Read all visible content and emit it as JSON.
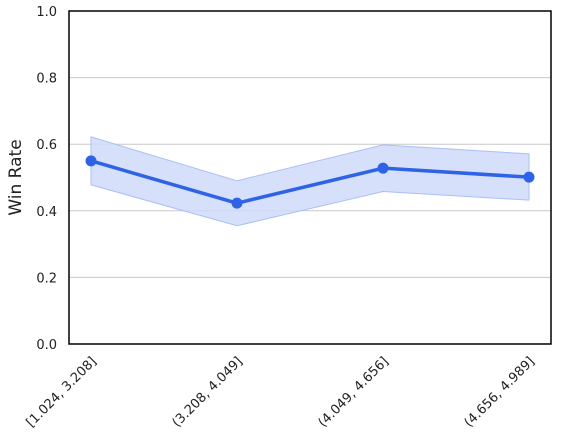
{
  "chart_data": {
    "type": "line",
    "title": "",
    "xlabel": "",
    "ylabel": "Win Rate",
    "categories": [
      "[1.024, 3.208]",
      "(3.208, 4.049]",
      "(4.049, 4.656]",
      "(4.656, 4.989]"
    ],
    "series": [
      {
        "values": [
          0.55,
          0.423,
          0.528,
          0.501
        ],
        "ci_lower": [
          0.478,
          0.355,
          0.458,
          0.432
        ],
        "ci_upper": [
          0.622,
          0.49,
          0.598,
          0.571
        ]
      }
    ],
    "ylim": [
      0.0,
      1.0
    ],
    "yticks": [
      0.0,
      0.2,
      0.4,
      0.6,
      0.8,
      1.0
    ],
    "ytick_labels": [
      "0.0",
      "0.2",
      "0.4",
      "0.6",
      "0.8",
      "1.0"
    ],
    "grid": "horizontal",
    "legend": "none",
    "colors": {
      "line": "#2f63e6",
      "band": "#cfdbfa",
      "band_edge": "#a9bff4",
      "grid": "#c8c8c8",
      "frame": "#000000"
    }
  }
}
